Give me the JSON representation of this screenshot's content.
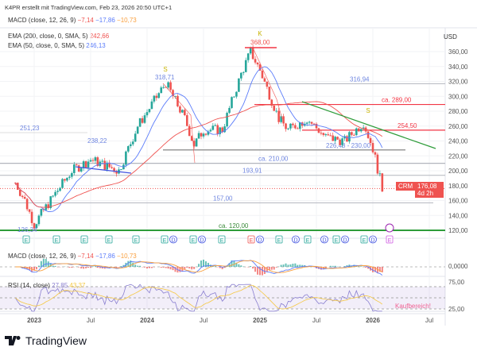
{
  "header": {
    "credit": "K4PR erstellt mit TradingView.com, Feb 23, 2026 20:50 UTC+1"
  },
  "legend": {
    "macd_title": "MACD (close, 12, 26, 9)",
    "macd_v1": "−7,14",
    "macd_v2": "−17,86",
    "macd_v3": "−10,73",
    "ema200_title": "EMA (200, close, 0, SMA, 5)",
    "ema200_value": "242,66",
    "ema50_title": "EMA (50, close, 0, SMA, 5)",
    "ema50_value": "246,13",
    "rsi_title": "RSI (14, close)",
    "rsi_v1": "27,85",
    "rsi_v2": "43,37"
  },
  "colors": {
    "up": "#26a69a",
    "down": "#ef5350",
    "ema50": "#5b7cfa",
    "ema200": "#ef5350",
    "support": "#2e9c3a",
    "level": "#f23645"
  },
  "price_axis": {
    "currency": "USD",
    "ticks": [
      "360,00",
      "340,00",
      "320,00",
      "300,00",
      "280,00",
      "260,00",
      "240,00",
      "220,00",
      "200,00",
      "180,00",
      "160,00",
      "140,00",
      "120,00"
    ]
  },
  "last_price": {
    "symbol": "CRM",
    "price": "176,08",
    "countdown": "4d 2h"
  },
  "time_axis": [
    "2023",
    "Jul",
    "2024",
    "Jul",
    "2025",
    "Jul",
    "2026",
    "Jul"
  ],
  "macd_axis": [
    "0,0000"
  ],
  "rsi_axis": [
    "75,00",
    "25,00"
  ],
  "annotations": {
    "high_2024": "318,71",
    "peak": "368,00",
    "low_2023": "126,34",
    "l251": "251,23",
    "l238": "238,22",
    "l316": "316,94",
    "l289": "ca. 289,00",
    "l254": "254,50",
    "l226": "226,48 - 230,00",
    "l210": "ca. 210,00",
    "l193": "193,91",
    "l157": "157,00",
    "l120": "ca. 120,00",
    "marker_s": "S",
    "marker_k": "K",
    "rsi_note": "Kaufbereich!"
  },
  "footer": {
    "logo": "TradingView"
  },
  "chart_data": {
    "type": "candlestick",
    "ylim": [
      120,
      370
    ],
    "y_unit": "USD",
    "xlim": [
      "2022-11",
      "2026-08"
    ],
    "price_path": [
      [
        "2022-11",
        184
      ],
      [
        "2022-12",
        160
      ],
      [
        "2023-01",
        128
      ],
      [
        "2023-03",
        165
      ],
      [
        "2023-05",
        200
      ],
      [
        "2023-07",
        215
      ],
      [
        "2023-09",
        205
      ],
      [
        "2023-10",
        200
      ],
      [
        "2023-12",
        260
      ],
      [
        "2024-03",
        318
      ],
      [
        "2024-05",
        270
      ],
      [
        "2024-06",
        235
      ],
      [
        "2024-07",
        255
      ],
      [
        "2024-09",
        255
      ],
      [
        "2024-11",
        330
      ],
      [
        "2024-12",
        360
      ],
      [
        "2025-01",
        335
      ],
      [
        "2025-03",
        270
      ],
      [
        "2025-04",
        255
      ],
      [
        "2025-06",
        270
      ],
      [
        "2025-08",
        245
      ],
      [
        "2025-10",
        240
      ],
      [
        "2025-12",
        265
      ],
      [
        "2026-01",
        230
      ],
      [
        "2026-02",
        176
      ]
    ],
    "horizontal_levels": [
      316.94,
      289,
      254.5,
      228,
      210,
      193.91,
      157,
      120
    ]
  }
}
